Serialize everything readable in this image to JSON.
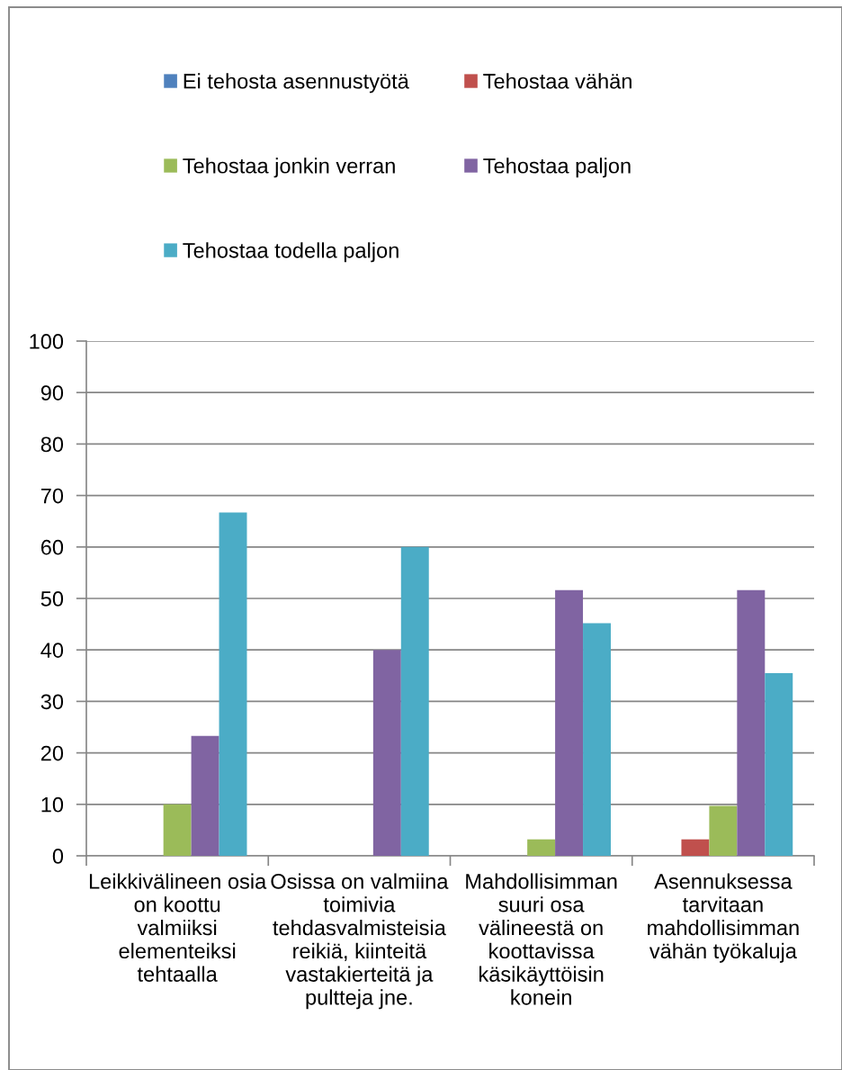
{
  "chart_data": {
    "type": "bar",
    "categories": [
      "Leikkivälineen osia\non koottu\nvalmiiksi\nelementeiksi\ntehtaalla",
      "Osissa on valmiina\ntoimivia\ntehdasvalmisteisia\nreikiä, kiinteitä\nvastakierteitä ja\npultteja jne.",
      "Mahdollisimman\nsuuri osa\nvälineestä on\nkoottavissa\nkäsikäyttöisin\nkonein",
      "Asennuksessa\ntarvitaan\nmahdollisimman\nvähän työkaluja"
    ],
    "series": [
      {
        "name": "Ei tehosta asennustyötä",
        "color": "#4f81bd",
        "values": [
          0,
          0,
          0,
          0
        ]
      },
      {
        "name": "Tehostaa vähän",
        "color": "#c0504d",
        "values": [
          0,
          0,
          0,
          3.2
        ]
      },
      {
        "name": "Tehostaa jonkin verran",
        "color": "#9bbb59",
        "values": [
          10,
          0,
          3.2,
          9.7
        ]
      },
      {
        "name": "Tehostaa paljon",
        "color": "#8064a2",
        "values": [
          23.3,
          40,
          51.6,
          51.6
        ]
      },
      {
        "name": "Tehostaa todella paljon",
        "color": "#4bacc6",
        "values": [
          66.7,
          60,
          45.2,
          35.5
        ]
      }
    ],
    "ylim": [
      0,
      100
    ],
    "yticks": [
      0,
      10,
      20,
      30,
      40,
      50,
      60,
      70,
      80,
      90,
      100
    ],
    "grid": "y",
    "legend": "top"
  }
}
